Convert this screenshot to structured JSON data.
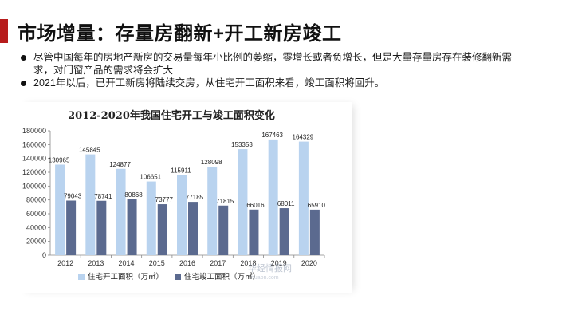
{
  "header": {
    "title": "市场增量：存量房翻新+开工新房竣工"
  },
  "bullets": [
    "尽管中国每年的房地产新房的交易量每年小比例的萎缩，零增长或者负增长，但是大量存量房存在装修翻新需求，对门窗产品的需求将会扩大",
    "2021年以后，已开工新房将陆续交房，从住宅开工面积来看，竣工面积将回升。"
  ],
  "colors": {
    "accent": "#b71c1c",
    "series_start": "#b9d3ef",
    "series_complete": "#5b6a8f"
  },
  "watermark": {
    "text": "华经情报网",
    "url": "huaon.com"
  },
  "chart_data": {
    "type": "bar",
    "title": "2012-2020年我国住宅开工与竣工面积变化",
    "categories": [
      "2012",
      "2013",
      "2014",
      "2015",
      "2016",
      "2017",
      "2018",
      "2019",
      "2020"
    ],
    "series": [
      {
        "name": "住宅开工面积（万㎡）",
        "values": [
          130965,
          145845,
          124877,
          106651,
          115911,
          128098,
          153353,
          167463,
          164329
        ]
      },
      {
        "name": "住宅竣工面积（万㎡）",
        "values": [
          79043,
          78741,
          80868,
          73777,
          77185,
          71815,
          66016,
          68011,
          65910
        ]
      }
    ],
    "ylim": [
      0,
      180000
    ],
    "yticks": [
      0,
      20000,
      40000,
      60000,
      80000,
      100000,
      120000,
      140000,
      160000,
      180000
    ],
    "grid": false,
    "legend": "bottom"
  }
}
